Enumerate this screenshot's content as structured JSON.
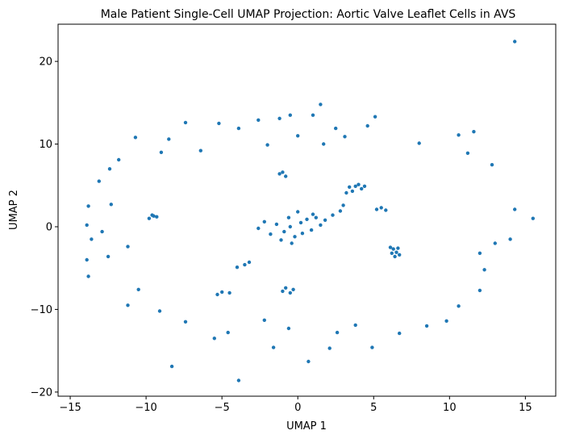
{
  "chart_data": {
    "type": "scatter",
    "title": "Male Patient Single-Cell UMAP Projection: Aortic Valve Leaflet Cells in AVS",
    "xlabel": "UMAP 1",
    "ylabel": "UMAP 2",
    "xlim": [
      -15.8,
      17.0
    ],
    "ylim": [
      -20.5,
      24.5
    ],
    "xticks": [
      -15,
      -10,
      -5,
      0,
      5,
      10,
      15
    ],
    "yticks": [
      -20,
      -10,
      0,
      10,
      20
    ],
    "xtick_labels": [
      "−15",
      "−10",
      "−5",
      "0",
      "5",
      "10",
      "15"
    ],
    "ytick_labels": [
      "−20",
      "−10",
      "0",
      "10",
      "20"
    ],
    "grid": false,
    "legend": "none",
    "marker_color": "#1f77b4",
    "series": [
      {
        "points": [
          [
            14.3,
            22.4
          ],
          [
            1.5,
            14.8
          ],
          [
            -0.5,
            13.5
          ],
          [
            1.0,
            13.5
          ],
          [
            5.1,
            13.3
          ],
          [
            -1.2,
            13.1
          ],
          [
            -2.6,
            12.9
          ],
          [
            -5.2,
            12.5
          ],
          [
            -7.4,
            12.6
          ],
          [
            -3.9,
            11.9
          ],
          [
            2.5,
            11.9
          ],
          [
            4.6,
            12.2
          ],
          [
            0.0,
            11.0
          ],
          [
            3.1,
            10.9
          ],
          [
            -8.5,
            10.6
          ],
          [
            -10.7,
            10.8
          ],
          [
            10.6,
            11.1
          ],
          [
            11.6,
            11.5
          ],
          [
            -2.0,
            9.9
          ],
          [
            1.7,
            10.0
          ],
          [
            -6.4,
            9.2
          ],
          [
            8.0,
            10.1
          ],
          [
            -9.0,
            9.0
          ],
          [
            11.2,
            8.9
          ],
          [
            -11.8,
            8.1
          ],
          [
            -12.4,
            7.0
          ],
          [
            12.8,
            7.5
          ],
          [
            -13.1,
            5.5
          ],
          [
            -12.3,
            2.7
          ],
          [
            -13.8,
            2.5
          ],
          [
            -9.5,
            1.3
          ],
          [
            -9.8,
            1.0
          ],
          [
            -9.3,
            1.2
          ],
          [
            -9.6,
            1.4
          ],
          [
            14.3,
            2.1
          ],
          [
            15.5,
            1.0
          ],
          [
            -13.9,
            0.2
          ],
          [
            -12.9,
            -0.6
          ],
          [
            -13.6,
            -1.5
          ],
          [
            13.0,
            -2.0
          ],
          [
            14.0,
            -1.5
          ],
          [
            -11.2,
            -2.4
          ],
          [
            12.0,
            -3.2
          ],
          [
            -13.9,
            -4.0
          ],
          [
            -12.5,
            -3.6
          ],
          [
            -13.8,
            -6.0
          ],
          [
            12.3,
            -5.2
          ],
          [
            -10.5,
            -7.6
          ],
          [
            12.0,
            -7.7
          ],
          [
            -11.2,
            -9.5
          ],
          [
            10.6,
            -9.6
          ],
          [
            -9.1,
            -10.2
          ],
          [
            9.8,
            -11.4
          ],
          [
            -8.3,
            -16.9
          ],
          [
            -3.9,
            -18.6
          ],
          [
            0.7,
            -16.3
          ],
          [
            -1.6,
            -14.6
          ],
          [
            2.1,
            -14.7
          ],
          [
            4.9,
            -14.6
          ],
          [
            -5.5,
            -13.5
          ],
          [
            6.7,
            -12.9
          ],
          [
            -4.6,
            -12.8
          ],
          [
            -0.6,
            -12.3
          ],
          [
            2.6,
            -12.8
          ],
          [
            3.8,
            -11.9
          ],
          [
            8.5,
            -12.0
          ],
          [
            -7.4,
            -11.5
          ],
          [
            -2.2,
            -11.3
          ],
          [
            -0.5,
            -8.0
          ],
          [
            -0.8,
            -7.4
          ],
          [
            -1.0,
            -7.8
          ],
          [
            -0.3,
            -7.6
          ],
          [
            -5.0,
            -7.9
          ],
          [
            -4.5,
            -8.0
          ],
          [
            -5.3,
            -8.2
          ],
          [
            6.3,
            -2.7
          ],
          [
            6.5,
            -3.1
          ],
          [
            6.1,
            -2.5
          ],
          [
            6.7,
            -3.4
          ],
          [
            6.4,
            -3.6
          ],
          [
            6.2,
            -3.2
          ],
          [
            6.6,
            -2.6
          ],
          [
            3.4,
            4.8
          ],
          [
            3.8,
            4.9
          ],
          [
            4.2,
            4.6
          ],
          [
            3.6,
            4.3
          ],
          [
            4.0,
            5.1
          ],
          [
            3.2,
            4.1
          ],
          [
            4.4,
            4.9
          ],
          [
            -1.0,
            6.6
          ],
          [
            -0.8,
            6.1
          ],
          [
            -1.2,
            6.4
          ],
          [
            -3.5,
            -4.6
          ],
          [
            -4.0,
            -4.9
          ],
          [
            -3.2,
            -4.3
          ],
          [
            5.5,
            2.3
          ],
          [
            5.8,
            2.0
          ],
          [
            5.2,
            2.1
          ],
          [
            -0.5,
            0.0
          ],
          [
            0.2,
            0.5
          ],
          [
            -0.9,
            -0.6
          ],
          [
            0.6,
            0.9
          ],
          [
            1.2,
            1.1
          ],
          [
            -1.4,
            0.3
          ],
          [
            -0.2,
            -1.2
          ],
          [
            0.9,
            -0.4
          ],
          [
            1.8,
            0.8
          ],
          [
            2.3,
            1.4
          ],
          [
            -1.8,
            -0.9
          ],
          [
            -0.6,
            1.1
          ],
          [
            0.3,
            -0.8
          ],
          [
            1.5,
            0.2
          ],
          [
            -1.1,
            -1.6
          ],
          [
            2.8,
            1.9
          ],
          [
            -2.2,
            0.6
          ],
          [
            0.0,
            1.8
          ],
          [
            -0.4,
            -2.0
          ],
          [
            1.0,
            1.5
          ],
          [
            3.0,
            2.6
          ],
          [
            -2.6,
            -0.2
          ]
        ]
      }
    ]
  }
}
